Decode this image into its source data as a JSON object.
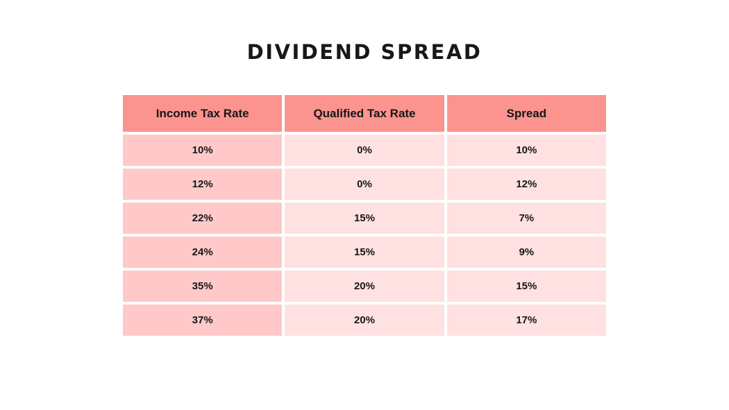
{
  "page": {
    "title": "DIVIDEND SPREAD",
    "background": "#ffffff"
  },
  "colors": {
    "header_bg": "#fb938f",
    "first_column_bg": "#ffc9c9",
    "light_column_bg": "#ffe1e1",
    "gutter": "#ffffff",
    "text": "#161616"
  },
  "table": {
    "headers": [
      "Income Tax Rate",
      "Qualified Tax Rate",
      "Spread"
    ],
    "rows": [
      [
        "10%",
        "0%",
        "10%"
      ],
      [
        "12%",
        "0%",
        "12%"
      ],
      [
        "22%",
        "15%",
        "7%"
      ],
      [
        "24%",
        "15%",
        "9%"
      ],
      [
        "35%",
        "20%",
        "15%"
      ],
      [
        "37%",
        "20%",
        "17%"
      ]
    ]
  },
  "chart_data": {
    "type": "table",
    "title": "DIVIDEND SPREAD",
    "columns": [
      "Income Tax Rate",
      "Qualified Tax Rate",
      "Spread"
    ],
    "rows": [
      [
        "10%",
        "0%",
        "10%"
      ],
      [
        "12%",
        "0%",
        "12%"
      ],
      [
        "22%",
        "15%",
        "7%"
      ],
      [
        "24%",
        "15%",
        "9%"
      ],
      [
        "35%",
        "20%",
        "15%"
      ],
      [
        "37%",
        "20%",
        "17%"
      ]
    ],
    "series": [
      {
        "name": "Income Tax Rate",
        "values": [
          10,
          12,
          22,
          24,
          35,
          37
        ],
        "unit": "%"
      },
      {
        "name": "Qualified Tax Rate",
        "values": [
          0,
          0,
          15,
          15,
          20,
          20
        ],
        "unit": "%"
      },
      {
        "name": "Spread",
        "values": [
          10,
          12,
          7,
          9,
          15,
          17
        ],
        "unit": "%"
      }
    ]
  }
}
